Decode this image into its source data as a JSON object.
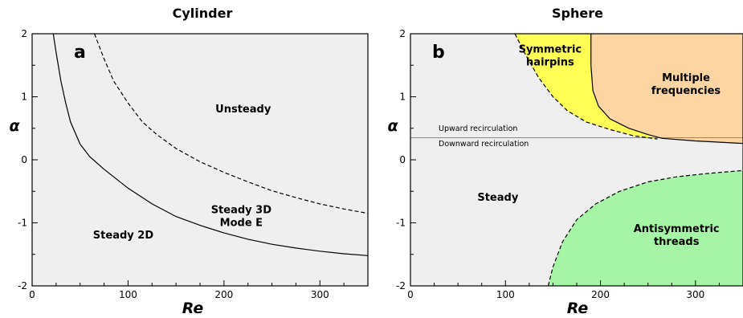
{
  "chart_data": [
    {
      "type": "line",
      "panel_letter": "a",
      "title": "Cylinder",
      "xlabel": "Re",
      "ylabel": "α",
      "xlim": [
        0,
        350
      ],
      "ylim": [
        -2,
        2
      ],
      "x_ticks": [
        0,
        100,
        200,
        300
      ],
      "y_ticks": [
        -2,
        -1,
        0,
        1,
        2
      ],
      "series": [
        {
          "style": "solid",
          "points": [
            [
              22,
              2.0
            ],
            [
              25,
              1.7
            ],
            [
              30,
              1.25
            ],
            [
              35,
              0.9
            ],
            [
              40,
              0.6
            ],
            [
              50,
              0.25
            ],
            [
              60,
              0.05
            ],
            [
              75,
              -0.15
            ],
            [
              100,
              -0.45
            ],
            [
              125,
              -0.7
            ],
            [
              150,
              -0.9
            ],
            [
              175,
              -1.04
            ],
            [
              200,
              -1.16
            ],
            [
              225,
              -1.26
            ],
            [
              250,
              -1.34
            ],
            [
              275,
              -1.4
            ],
            [
              300,
              -1.45
            ],
            [
              325,
              -1.49
            ],
            [
              350,
              -1.52
            ]
          ]
        },
        {
          "style": "dashed",
          "points": [
            [
              65,
              2.0
            ],
            [
              70,
              1.8
            ],
            [
              75,
              1.6
            ],
            [
              85,
              1.25
            ],
            [
              100,
              0.9
            ],
            [
              115,
              0.6
            ],
            [
              130,
              0.4
            ],
            [
              150,
              0.18
            ],
            [
              175,
              -0.03
            ],
            [
              200,
              -0.2
            ],
            [
              225,
              -0.35
            ],
            [
              250,
              -0.49
            ],
            [
              275,
              -0.6
            ],
            [
              300,
              -0.7
            ],
            [
              325,
              -0.78
            ],
            [
              350,
              -0.85
            ]
          ]
        }
      ],
      "regions": [
        {
          "label": "Unsteady",
          "x": 220,
          "y": 0.8
        },
        {
          "label": "Steady 3D\nMode E",
          "x": 218,
          "y": -0.9
        },
        {
          "label": "Steady 2D",
          "x": 95,
          "y": -1.2
        }
      ]
    },
    {
      "type": "line",
      "panel_letter": "b",
      "title": "Sphere",
      "xlabel": "Re",
      "ylabel": "α",
      "xlim": [
        0,
        350
      ],
      "ylim": [
        -2,
        2
      ],
      "x_ticks": [
        0,
        100,
        200,
        300
      ],
      "y_ticks": [
        -2,
        -1,
        0,
        1,
        2
      ],
      "reference_line": {
        "y": 0.35,
        "upper_label": "Upward recirculation",
        "lower_label": "Downward recirculation"
      },
      "series": [
        {
          "style": "dashed",
          "boundary_of": "Symmetric hairpins",
          "points": [
            [
              110,
              2.0
            ],
            [
              120,
              1.7
            ],
            [
              135,
              1.3
            ],
            [
              150,
              1.0
            ],
            [
              165,
              0.78
            ],
            [
              185,
              0.6
            ],
            [
              210,
              0.48
            ],
            [
              235,
              0.38
            ],
            [
              260,
              0.33
            ]
          ]
        },
        {
          "style": "solid",
          "boundary_of": "Multiple frequencies",
          "points": [
            [
              190,
              2.0
            ],
            [
              190,
              1.5
            ],
            [
              192,
              1.1
            ],
            [
              198,
              0.85
            ],
            [
              210,
              0.65
            ],
            [
              230,
              0.5
            ],
            [
              250,
              0.4
            ],
            [
              265,
              0.34
            ],
            [
              300,
              0.3
            ],
            [
              350,
              0.26
            ]
          ]
        },
        {
          "style": "dashed",
          "boundary_of": "Antisymmetric threads",
          "points": [
            [
              145,
              -2.0
            ],
            [
              150,
              -1.7
            ],
            [
              160,
              -1.3
            ],
            [
              175,
              -0.95
            ],
            [
              195,
              -0.7
            ],
            [
              220,
              -0.5
            ],
            [
              250,
              -0.35
            ],
            [
              280,
              -0.27
            ],
            [
              310,
              -0.22
            ],
            [
              350,
              -0.17
            ]
          ]
        }
      ],
      "regions": [
        {
          "label": "Symmetric\nhairpins",
          "x": 147,
          "y": 1.65,
          "color": "#ffff55"
        },
        {
          "label": "Multiple\nfrequencies",
          "x": 290,
          "y": 1.2,
          "color": "#fcd5a3"
        },
        {
          "label": "Steady",
          "x": 92,
          "y": -0.6
        },
        {
          "label": "Antisymmetric\nthreads",
          "x": 280,
          "y": -1.2,
          "color": "#a6f5a6"
        }
      ]
    }
  ],
  "colors": {
    "background": "#efefef",
    "axes": "#000000",
    "hairpins_fill": "#ffff55",
    "multiple_fill": "#fcd5a3",
    "threads_fill": "#a6f5a6",
    "reference_line": "#888888"
  }
}
